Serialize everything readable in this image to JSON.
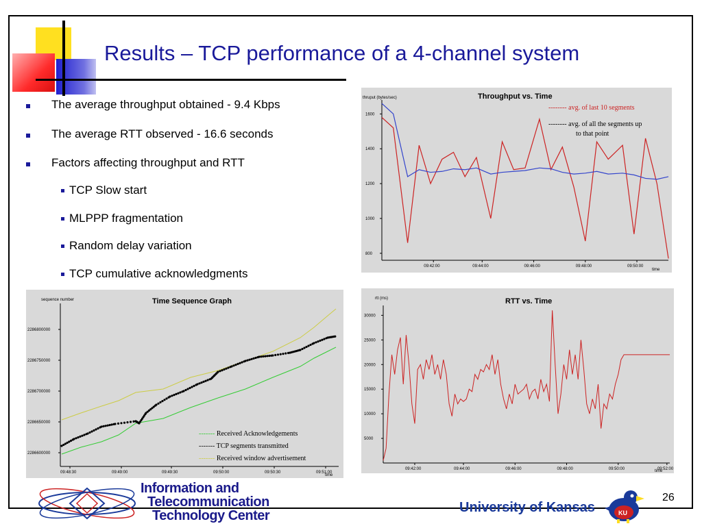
{
  "slide": {
    "title": "Results – TCP performance of a 4-channel system",
    "page_number": "26",
    "colors": {
      "title": "#1a1a9a",
      "bullet": "#1a1a9a",
      "red_line": "#cc2222",
      "blue_line": "#3344cc",
      "yellow_line": "#cccc44",
      "green_line": "#33cc33"
    }
  },
  "bullets": [
    {
      "text": "The average throughput obtained - 9.4 Kbps"
    },
    {
      "text": "The average RTT observed - 16.6 seconds"
    },
    {
      "text": "Factors affecting throughput and RTT"
    }
  ],
  "sub_bullets": [
    {
      "text": "TCP Slow start"
    },
    {
      "text": "MLPPP fragmentation"
    },
    {
      "text": "Random delay variation"
    },
    {
      "text": "TCP cumulative acknowledgments"
    }
  ],
  "footer": {
    "ittc_line1": "Information and",
    "ittc_line2": "Telecommunication",
    "ittc_line3": "Technology Center",
    "university": "University of Kansas",
    "mascot_label": "KU"
  },
  "chart_data": [
    {
      "type": "line",
      "title": "Throughput vs. Time",
      "ylabel": "thruput (bytes/sec)",
      "xlabel": "time",
      "x_ticks": [
        "09:42:00",
        "09:44:00",
        "09:46:00",
        "09:48:00",
        "09:50:00"
      ],
      "y_ticks": [
        800,
        1000,
        1200,
        1400,
        1600
      ],
      "ylim": [
        760,
        1680
      ],
      "xlim": [
        0,
        100
      ],
      "legend": [
        {
          "text": "-------- avg. of last 10 segments",
          "color": "#cc2222"
        },
        {
          "text": "-------- avg. of all the segments up",
          "color": "#000000"
        },
        {
          "text": "to that point",
          "color": "#000000"
        }
      ],
      "series": [
        {
          "color": "#cc2222",
          "x": [
            0,
            4,
            9,
            13,
            17,
            21,
            25,
            29,
            33,
            38,
            42,
            46,
            50,
            55,
            59,
            63,
            67,
            71,
            75,
            79,
            84,
            88,
            92,
            96,
            100
          ],
          "y": [
            1580,
            1520,
            860,
            1420,
            1200,
            1340,
            1380,
            1240,
            1350,
            1000,
            1440,
            1280,
            1290,
            1570,
            1280,
            1410,
            1180,
            870,
            1440,
            1340,
            1420,
            910,
            1460,
            1200,
            770
          ]
        },
        {
          "color": "#3344cc",
          "x": [
            0,
            4,
            9,
            13,
            17,
            21,
            25,
            29,
            33,
            38,
            42,
            46,
            50,
            55,
            59,
            63,
            67,
            71,
            75,
            79,
            84,
            88,
            92,
            96,
            100
          ],
          "y": [
            1660,
            1600,
            1240,
            1280,
            1265,
            1270,
            1285,
            1280,
            1290,
            1255,
            1265,
            1270,
            1275,
            1290,
            1285,
            1265,
            1255,
            1260,
            1270,
            1255,
            1260,
            1250,
            1230,
            1225,
            1240
          ]
        }
      ]
    },
    {
      "type": "scatter",
      "title": "Time Sequence Graph",
      "ylabel": "sequence number",
      "xlabel": "time",
      "x_ticks": [
        "09:48:30",
        "09:49:00",
        "09:49:30",
        "09:50:00",
        "09:50:30",
        "09:51:00"
      ],
      "y_ticks": [
        "2286600000",
        "2286650000",
        "2286700000",
        "2286750000",
        "2286800000"
      ],
      "legend": [
        {
          "text": "------- Received Acknowledgements",
          "color": "#33cc33"
        },
        {
          "text": "------- TCP segments transmitted",
          "color": "#000000"
        },
        {
          "text": "------- Received window advertisement",
          "color": "#cccc44"
        }
      ]
    },
    {
      "type": "line",
      "title": "RTT vs. Time",
      "ylabel": "rtt (ms)",
      "xlabel": "time",
      "x_ticks": [
        "09:42:00",
        "09:44:00",
        "09:46:00",
        "09:48:00",
        "09:50:00",
        "09:52:00"
      ],
      "y_ticks": [
        5000,
        10000,
        15000,
        20000,
        25000,
        30000
      ],
      "ylim": [
        0,
        32000
      ],
      "series": [
        {
          "color": "#cc2222",
          "x": [
            0,
            1,
            2,
            3,
            4,
            5,
            6,
            7,
            8,
            9,
            10,
            11,
            12,
            13,
            14,
            15,
            16,
            17,
            18,
            19,
            20,
            21,
            22,
            23,
            24,
            25,
            26,
            27,
            28,
            29,
            30,
            31,
            32,
            33,
            34,
            35,
            36,
            37,
            38,
            39,
            40,
            41,
            42,
            43,
            44,
            45,
            46,
            47,
            48,
            49,
            50,
            51,
            52,
            53,
            54,
            55,
            56,
            57,
            58,
            59,
            60,
            61,
            62,
            63,
            64,
            65,
            66,
            67,
            68,
            69,
            70,
            71,
            72,
            73,
            74,
            75,
            76,
            77,
            78,
            79,
            80,
            81,
            82,
            83,
            84,
            85,
            86,
            87,
            88,
            89,
            90,
            91,
            92,
            93,
            94,
            95,
            96,
            97,
            98,
            99,
            100
          ],
          "y": [
            500,
            3000,
            14000,
            22000,
            18000,
            23000,
            25500,
            16000,
            26000,
            20000,
            12000,
            8000,
            19000,
            20000,
            17000,
            21000,
            19000,
            22000,
            18000,
            20000,
            17000,
            21000,
            18000,
            12000,
            9500,
            14000,
            12000,
            13000,
            12500,
            13000,
            15000,
            14500,
            18000,
            17000,
            19000,
            18500,
            20000,
            19000,
            22000,
            18000,
            21000,
            16000,
            13000,
            11000,
            14000,
            12000,
            16000,
            14000,
            14500,
            15000,
            16000,
            13000,
            14500,
            15000,
            13000,
            17000,
            14500,
            16000,
            12500,
            31000,
            20000,
            10000,
            14000,
            20000,
            17000,
            23000,
            18000,
            22000,
            17000,
            25000,
            19000,
            12000,
            10000,
            13000,
            11000,
            16000,
            7000,
            12000,
            11000,
            14000,
            13000,
            16000,
            18000,
            21000,
            22000,
            22000,
            22000,
            22000,
            22000,
            22000,
            22000,
            22000,
            22000,
            22000,
            22000,
            22000,
            22000,
            22000,
            22000,
            22000,
            22000
          ]
        }
      ]
    }
  ]
}
